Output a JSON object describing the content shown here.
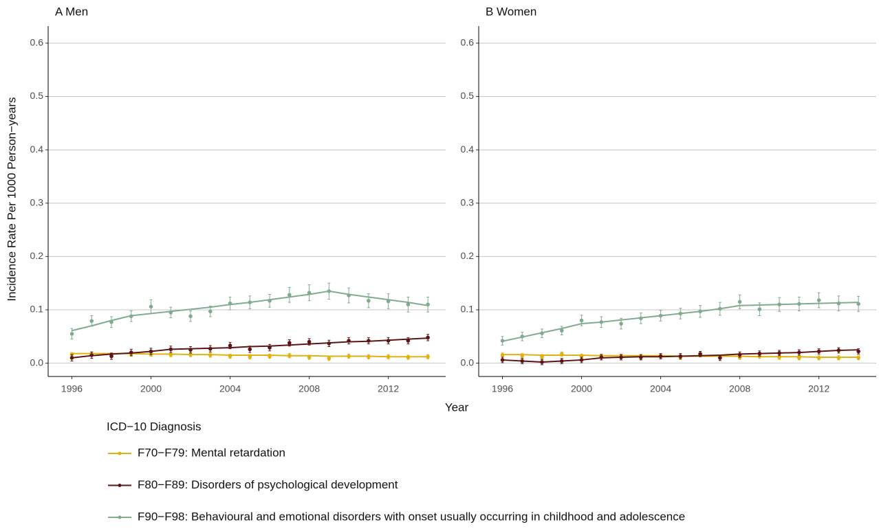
{
  "y_label": "Incidence Rate Per 1000 Person−years",
  "x_label": "Year",
  "legend": {
    "title": "ICD−10 Diagnosis",
    "entries": [
      {
        "name": "F70−F79: Mental retardation",
        "color": "#dfb30f"
      },
      {
        "name": "F80−F89: Disorders of psychological development",
        "color": "#5c1414"
      },
      {
        "name": "F90−F98: Behavioural and emotional disorders with onset usually occurring in childhood and adolescence",
        "color": "#80ab8f"
      }
    ]
  },
  "chart_data": [
    {
      "type": "line",
      "title": "A Men",
      "x": [
        1996,
        1997,
        1998,
        1999,
        2000,
        2001,
        2002,
        2003,
        2004,
        2005,
        2006,
        2007,
        2008,
        2009,
        2010,
        2011,
        2012,
        2013,
        2014
      ],
      "xlim": [
        1994.8,
        2014.9
      ],
      "xticks": [
        1996,
        2000,
        2004,
        2008,
        2012
      ],
      "ylim": [
        -0.025,
        0.632
      ],
      "yticks": [
        {
          "value": 0,
          "label": "0.0"
        },
        0.1,
        0.2,
        0.3,
        0.4,
        0.5,
        0.6
      ],
      "grid": true,
      "series": [
        {
          "values": [
            0.016,
            0.017,
            0.015,
            0.017,
            0.017,
            0.016,
            0.016,
            0.015,
            0.013,
            0.012,
            0.013,
            0.014,
            0.011,
            0.009,
            0.013,
            0.012,
            0.012,
            0.011,
            0.012
          ],
          "errors": [
            0.004,
            0.004,
            0.004,
            0.004,
            0.004,
            0.004,
            0.004,
            0.004,
            0.004,
            0.004,
            0.004,
            0.004,
            0.004,
            0.004,
            0.004,
            0.004,
            0.004,
            0.004,
            0.004
          ],
          "fitted": [
            0.018,
            0.018,
            0.018,
            0.018,
            0.017,
            0.017,
            0.016,
            0.016,
            0.015,
            0.015,
            0.015,
            0.014,
            0.014,
            0.013,
            0.013,
            0.013,
            0.012,
            0.012,
            0.012
          ]
        },
        {
          "values": [
            0.01,
            0.015,
            0.013,
            0.02,
            0.022,
            0.026,
            0.025,
            0.027,
            0.033,
            0.026,
            0.029,
            0.038,
            0.04,
            0.037,
            0.042,
            0.042,
            0.042,
            0.042,
            0.048
          ],
          "errors": [
            0.006,
            0.006,
            0.006,
            0.006,
            0.006,
            0.006,
            0.006,
            0.006,
            0.006,
            0.006,
            0.006,
            0.006,
            0.006,
            0.006,
            0.006,
            0.006,
            0.006,
            0.006,
            0.006
          ],
          "fitted": [
            0.01,
            0.014,
            0.017,
            0.019,
            0.022,
            0.026,
            0.027,
            0.028,
            0.029,
            0.031,
            0.032,
            0.034,
            0.036,
            0.038,
            0.04,
            0.041,
            0.043,
            0.045,
            0.047
          ]
        },
        {
          "values": [
            0.055,
            0.079,
            0.077,
            0.088,
            0.106,
            0.095,
            0.088,
            0.097,
            0.112,
            0.114,
            0.117,
            0.128,
            0.132,
            0.135,
            0.127,
            0.117,
            0.116,
            0.11,
            0.11
          ],
          "errors": [
            0.01,
            0.01,
            0.01,
            0.01,
            0.013,
            0.01,
            0.01,
            0.01,
            0.012,
            0.012,
            0.012,
            0.014,
            0.015,
            0.015,
            0.014,
            0.013,
            0.014,
            0.014,
            0.014
          ],
          "fitted": [
            0.061,
            0.07,
            0.08,
            0.089,
            0.093,
            0.097,
            0.101,
            0.105,
            0.11,
            0.114,
            0.119,
            0.124,
            0.129,
            0.135,
            0.129,
            0.124,
            0.119,
            0.114,
            0.108
          ]
        }
      ]
    },
    {
      "type": "line",
      "title": "B Women",
      "x": [
        1996,
        1997,
        1998,
        1999,
        2000,
        2001,
        2002,
        2003,
        2004,
        2005,
        2006,
        2007,
        2008,
        2009,
        2010,
        2011,
        2012,
        2013,
        2014
      ],
      "xlim": [
        1994.8,
        2014.9
      ],
      "xticks": [
        1996,
        2000,
        2004,
        2008,
        2012
      ],
      "ylim": [
        -0.025,
        0.632
      ],
      "yticks": [
        {
          "value": 0,
          "label": "0.0"
        },
        0.1,
        0.2,
        0.3,
        0.4,
        0.5,
        0.6
      ],
      "grid": true,
      "series": [
        {
          "values": [
            0.015,
            0.014,
            0.012,
            0.017,
            0.013,
            0.013,
            0.013,
            0.011,
            0.013,
            0.011,
            0.018,
            0.011,
            0.011,
            0.013,
            0.011,
            0.01,
            0.01,
            0.01,
            0.01
          ],
          "errors": [
            0.004,
            0.004,
            0.004,
            0.004,
            0.004,
            0.004,
            0.004,
            0.004,
            0.004,
            0.004,
            0.004,
            0.004,
            0.004,
            0.004,
            0.004,
            0.004,
            0.004,
            0.004,
            0.004
          ],
          "fitted": [
            0.016,
            0.016,
            0.015,
            0.015,
            0.015,
            0.014,
            0.014,
            0.014,
            0.014,
            0.013,
            0.013,
            0.013,
            0.013,
            0.012,
            0.012,
            0.012,
            0.011,
            0.011,
            0.011
          ]
        },
        {
          "values": [
            0.006,
            0.004,
            0.002,
            0.004,
            0.006,
            0.011,
            0.011,
            0.011,
            0.013,
            0.013,
            0.017,
            0.01,
            0.016,
            0.018,
            0.019,
            0.02,
            0.022,
            0.024,
            0.022
          ],
          "errors": [
            0.005,
            0.005,
            0.005,
            0.005,
            0.005,
            0.005,
            0.005,
            0.005,
            0.005,
            0.005,
            0.005,
            0.005,
            0.005,
            0.005,
            0.005,
            0.005,
            0.005,
            0.005,
            0.005
          ],
          "fitted": [
            0.006,
            0.004,
            0.002,
            0.004,
            0.006,
            0.01,
            0.011,
            0.012,
            0.012,
            0.013,
            0.014,
            0.015,
            0.017,
            0.018,
            0.019,
            0.02,
            0.022,
            0.024,
            0.025
          ]
        },
        {
          "values": [
            0.042,
            0.05,
            0.056,
            0.061,
            0.08,
            0.077,
            0.074,
            0.084,
            0.089,
            0.093,
            0.097,
            0.102,
            0.115,
            0.101,
            0.11,
            0.111,
            0.118,
            0.112,
            0.111
          ],
          "errors": [
            0.008,
            0.008,
            0.008,
            0.008,
            0.01,
            0.01,
            0.01,
            0.01,
            0.01,
            0.01,
            0.011,
            0.012,
            0.013,
            0.012,
            0.013,
            0.013,
            0.014,
            0.014,
            0.014
          ],
          "fitted": [
            0.041,
            0.049,
            0.057,
            0.065,
            0.074,
            0.077,
            0.081,
            0.085,
            0.089,
            0.093,
            0.097,
            0.102,
            0.108,
            0.109,
            0.11,
            0.111,
            0.112,
            0.113,
            0.114
          ]
        }
      ]
    }
  ]
}
